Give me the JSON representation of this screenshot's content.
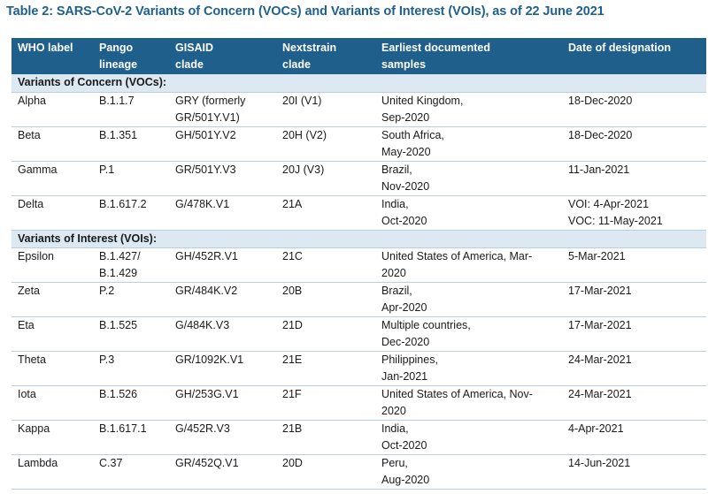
{
  "title": "Table 2: SARS-CoV-2 Variants of Concern (VOCs) and Variants of Interest (VOIs), as of 22 June 2021",
  "headers": [
    [
      "WHO label"
    ],
    [
      "Pango",
      "lineage"
    ],
    [
      "GISAID",
      "clade"
    ],
    [
      "Nextstrain",
      "clade"
    ],
    [
      "Earliest documented",
      "samples"
    ],
    [
      "Date of designation"
    ]
  ],
  "sections": [
    {
      "label": "Variants of Concern (VOCs):",
      "rows": [
        {
          "who": "Alpha",
          "pango": [
            "B.1.1.7"
          ],
          "gisaid": [
            "GRY (formerly",
            "GR/501Y.V1)"
          ],
          "nextstrain": "20I (V1)",
          "samples": [
            "United Kingdom,",
            "Sep-2020"
          ],
          "date": [
            "18-Dec-2020"
          ]
        },
        {
          "who": "Beta",
          "pango": [
            "B.1.351"
          ],
          "gisaid": [
            "GH/501Y.V2"
          ],
          "nextstrain": "20H (V2)",
          "samples": [
            "South Africa,",
            "May-2020"
          ],
          "date": [
            "18-Dec-2020"
          ]
        },
        {
          "who": "Gamma",
          "pango": [
            "P.1"
          ],
          "gisaid": [
            "GR/501Y.V3"
          ],
          "nextstrain": "20J (V3)",
          "samples": [
            "Brazil,",
            "Nov-2020"
          ],
          "date": [
            "11-Jan-2021"
          ]
        },
        {
          "who": "Delta",
          "pango": [
            "B.1.617.2"
          ],
          "gisaid": [
            "G/478K.V1"
          ],
          "nextstrain": "21A",
          "samples": [
            "India,",
            "Oct-2020"
          ],
          "date": [
            "VOI: 4-Apr-2021",
            "VOC: 11-May-2021"
          ]
        }
      ]
    },
    {
      "label": "Variants of Interest (VOIs):",
      "rows": [
        {
          "who": "Epsilon",
          "pango": [
            "B.1.427/",
            "B.1.429"
          ],
          "gisaid": [
            "GH/452R.V1"
          ],
          "nextstrain": "21C",
          "samples": [
            "United States of America, Mar-",
            "2020"
          ],
          "date": [
            "5-Mar-2021"
          ]
        },
        {
          "who": "Zeta",
          "pango": [
            "P.2"
          ],
          "gisaid": [
            "GR/484K.V2"
          ],
          "nextstrain": "20B",
          "samples": [
            "Brazil,",
            "Apr-2020"
          ],
          "date": [
            "17-Mar-2021"
          ]
        },
        {
          "who": "Eta",
          "pango": [
            "B.1.525"
          ],
          "gisaid": [
            "G/484K.V3"
          ],
          "nextstrain": "21D",
          "samples": [
            "Multiple countries,",
            "Dec-2020"
          ],
          "date": [
            "17-Mar-2021"
          ]
        },
        {
          "who": "Theta",
          "pango": [
            "P.3"
          ],
          "gisaid": [
            "GR/1092K.V1"
          ],
          "nextstrain": "21E",
          "samples": [
            "Philippines,",
            "Jan-2021"
          ],
          "date": [
            "24-Mar-2021"
          ]
        },
        {
          "who": "Iota",
          "pango": [
            "B.1.526"
          ],
          "gisaid": [
            "GH/253G.V1"
          ],
          "nextstrain": "21F",
          "samples": [
            "United States of America, Nov-",
            "2020"
          ],
          "date": [
            "24-Mar-2021"
          ]
        },
        {
          "who": "Kappa",
          "pango": [
            "B.1.617.1"
          ],
          "gisaid": [
            "G/452R.V3"
          ],
          "nextstrain": "21B",
          "samples": [
            "India,",
            "Oct-2020"
          ],
          "date": [
            "4-Apr-2021"
          ]
        },
        {
          "who": "Lambda",
          "pango": [
            "C.37"
          ],
          "gisaid": [
            "GR/452Q.V1"
          ],
          "nextstrain": "20D",
          "samples": [
            "Peru,",
            "Aug-2020"
          ],
          "date": [
            "14-Jun-2021"
          ]
        }
      ]
    }
  ]
}
